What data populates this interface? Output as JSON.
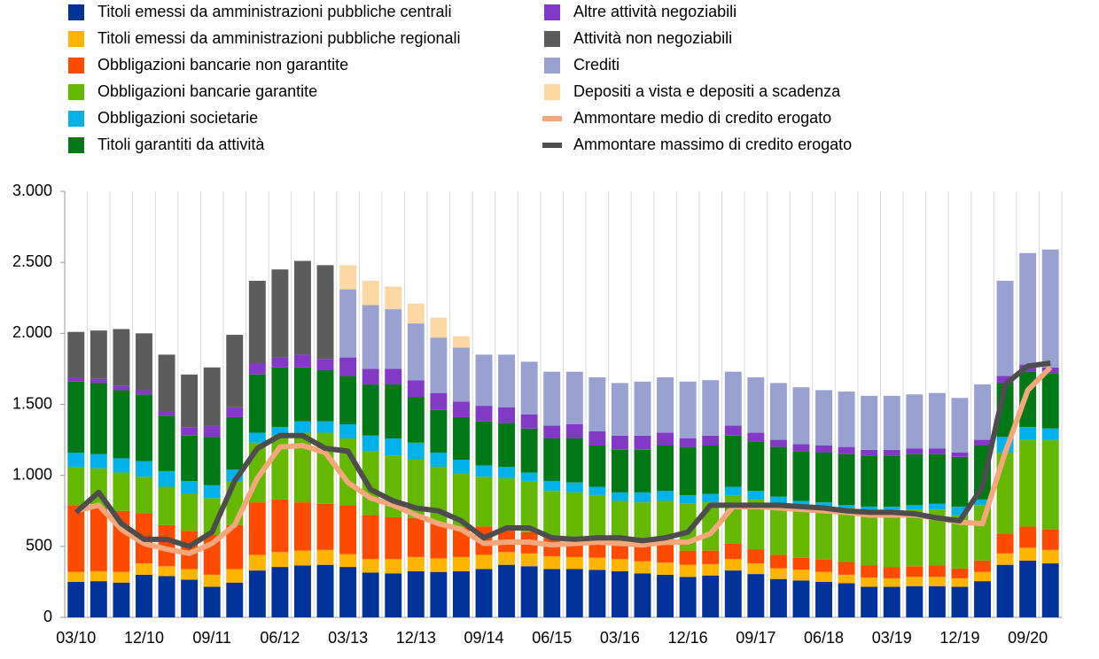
{
  "chart_data": {
    "type": "bar",
    "stacked": true,
    "categories": [
      "03/10",
      null,
      null,
      "12/10",
      null,
      null,
      "09/11",
      null,
      null,
      "06/12",
      null,
      null,
      "03/13",
      null,
      null,
      "12/13",
      null,
      null,
      "09/14",
      null,
      null,
      "06/15",
      null,
      null,
      "03/16",
      null,
      null,
      "12/16",
      null,
      null,
      "09/17",
      null,
      null,
      "06/18",
      null,
      null,
      "03/19",
      null,
      null,
      "12/19",
      null,
      null,
      "09/20",
      null
    ],
    "ylim": [
      0,
      3000
    ],
    "yticks": [
      0,
      {
        "value": 500,
        "label": "500"
      },
      {
        "value": 1000,
        "label": "1.000"
      },
      {
        "value": 1500,
        "label": "1.500"
      },
      {
        "value": 2000,
        "label": "2.000"
      },
      {
        "value": 2500,
        "label": "2.500"
      },
      {
        "value": 3000,
        "label": "3.000"
      }
    ],
    "xgrid": true,
    "series": [
      {
        "name": "Titoli emessi da amministrazioni pubbliche centrali",
        "color": "#003299",
        "values": [
          250,
          255,
          245,
          300,
          290,
          265,
          215,
          245,
          330,
          355,
          365,
          370,
          355,
          315,
          310,
          325,
          320,
          325,
          340,
          370,
          360,
          340,
          340,
          335,
          325,
          310,
          300,
          285,
          295,
          330,
          305,
          270,
          260,
          250,
          240,
          215,
          215,
          220,
          220,
          215,
          255,
          370,
          400,
          380
        ]
      },
      {
        "name": "Titoli emessi da amministrazioni pubbliche regionali",
        "color": "#ffb400",
        "values": [
          70,
          70,
          75,
          80,
          70,
          75,
          85,
          95,
          110,
          105,
          105,
          105,
          90,
          95,
          100,
          100,
          95,
          100,
          100,
          90,
          90,
          90,
          85,
          85,
          85,
          85,
          85,
          85,
          80,
          80,
          75,
          75,
          75,
          70,
          60,
          65,
          60,
          65,
          65,
          60,
          65,
          80,
          90,
          95
        ]
      },
      {
        "name": "Obbligazioni bancarie non garantite",
        "color": "#ff4b00",
        "values": [
          470,
          445,
          430,
          355,
          290,
          270,
          280,
          310,
          370,
          370,
          340,
          325,
          345,
          310,
          295,
          275,
          245,
          205,
          200,
          160,
          150,
          130,
          125,
          120,
          120,
          125,
          125,
          100,
          95,
          110,
          100,
          95,
          85,
          90,
          90,
          85,
          80,
          75,
          80,
          70,
          80,
          140,
          150,
          145
        ]
      },
      {
        "name": "Obbligazioni bancarie garantite",
        "color": "#65b800",
        "values": [
          270,
          280,
          270,
          255,
          270,
          260,
          260,
          310,
          420,
          450,
          490,
          500,
          470,
          450,
          435,
          410,
          400,
          380,
          350,
          360,
          360,
          330,
          330,
          320,
          290,
          290,
          310,
          330,
          340,
          340,
          350,
          360,
          370,
          370,
          380,
          395,
          405,
          400,
          395,
          375,
          390,
          570,
          610,
          630
        ]
      },
      {
        "name": "Obbligazioni societarie",
        "color": "#00b1ea",
        "values": [
          100,
          100,
          100,
          110,
          110,
          90,
          90,
          80,
          70,
          60,
          80,
          80,
          100,
          110,
          120,
          120,
          100,
          100,
          80,
          80,
          60,
          70,
          70,
          60,
          60,
          70,
          70,
          60,
          60,
          60,
          60,
          50,
          30,
          30,
          20,
          20,
          20,
          30,
          40,
          60,
          40,
          110,
          90,
          80
        ]
      },
      {
        "name": "Titoli garantiti da attività",
        "color": "#007816",
        "values": [
          500,
          500,
          480,
          470,
          390,
          320,
          340,
          370,
          410,
          420,
          380,
          360,
          340,
          360,
          380,
          320,
          300,
          300,
          310,
          310,
          310,
          300,
          310,
          290,
          300,
          300,
          320,
          340,
          340,
          360,
          350,
          350,
          350,
          350,
          360,
          360,
          360,
          360,
          350,
          350,
          380,
          380,
          390,
          390
        ]
      },
      {
        "name": "Altre attività negoziabili",
        "color": "#8139c6",
        "values": [
          30,
          30,
          30,
          30,
          30,
          60,
          80,
          70,
          80,
          70,
          90,
          80,
          130,
          110,
          110,
          120,
          120,
          110,
          110,
          110,
          100,
          90,
          100,
          100,
          100,
          100,
          90,
          60,
          70,
          70,
          60,
          50,
          50,
          50,
          50,
          40,
          40,
          40,
          40,
          30,
          40,
          50,
          50,
          40
        ]
      },
      {
        "name": "Attività non negoziabili",
        "color": "#5c5c5c",
        "values": [
          320,
          340,
          400,
          400,
          400,
          370,
          410,
          510,
          580,
          620,
          660,
          660,
          null,
          null,
          null,
          null,
          null,
          null,
          null,
          null,
          null,
          null,
          null,
          null,
          null,
          null,
          null,
          null,
          null,
          null,
          null,
          null,
          null,
          null,
          null,
          null,
          null,
          null,
          null,
          null,
          null,
          null,
          null,
          null
        ]
      },
      {
        "name": "Crediti",
        "color": "#98a1d0",
        "values": [
          null,
          null,
          null,
          null,
          null,
          null,
          null,
          null,
          null,
          null,
          null,
          null,
          480,
          450,
          420,
          400,
          390,
          380,
          360,
          370,
          370,
          380,
          370,
          380,
          370,
          380,
          390,
          400,
          390,
          380,
          390,
          400,
          400,
          390,
          390,
          380,
          380,
          380,
          390,
          385,
          390,
          670,
          785,
          830
        ]
      },
      {
        "name": "Depositi a vista e depositi a scadenza",
        "color": "#fdd8a5",
        "values": [
          null,
          null,
          null,
          null,
          null,
          null,
          null,
          null,
          null,
          null,
          null,
          null,
          170,
          170,
          160,
          140,
          140,
          80,
          null,
          null,
          null,
          null,
          null,
          null,
          null,
          null,
          null,
          null,
          null,
          null,
          null,
          null,
          null,
          null,
          null,
          null,
          null,
          null,
          null,
          null,
          null,
          null,
          null,
          null
        ]
      },
      {
        "name": "Ammontare medio di credito erogato",
        "type": "line",
        "color": "#f3a77a",
        "values": [
          750,
          790,
          620,
          520,
          480,
          450,
          520,
          650,
          980,
          1200,
          1210,
          1160,
          950,
          840,
          790,
          720,
          660,
          620,
          520,
          530,
          530,
          510,
          520,
          530,
          520,
          510,
          530,
          530,
          590,
          780,
          780,
          770,
          760,
          750,
          740,
          720,
          720,
          720,
          700,
          670,
          660,
          1160,
          1600,
          1760
        ]
      },
      {
        "name": "Ammontare massimo di credito erogato",
        "type": "line",
        "color": "#4d4d4d",
        "values": [
          740,
          880,
          660,
          550,
          550,
          500,
          600,
          960,
          1190,
          1280,
          1280,
          1190,
          1170,
          900,
          820,
          770,
          750,
          680,
          560,
          630,
          630,
          560,
          550,
          560,
          560,
          540,
          560,
          600,
          790,
          790,
          790,
          790,
          780,
          770,
          750,
          740,
          740,
          730,
          700,
          680,
          920,
          1640,
          1770,
          1790
        ]
      }
    ]
  }
}
